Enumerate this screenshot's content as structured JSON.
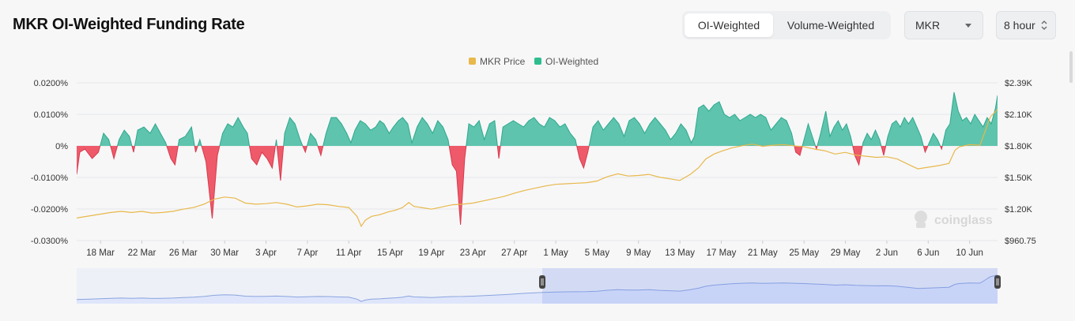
{
  "header": {
    "title": "MKR OI-Weighted Funding Rate",
    "tabs": [
      {
        "label": "OI-Weighted",
        "active": true
      },
      {
        "label": "Volume-Weighted",
        "active": false
      }
    ],
    "coin_select": "MKR",
    "interval_select": "8 hour"
  },
  "watermark": "coinglass",
  "colors": {
    "price": "#e8b84a",
    "positive": "#5ec4ad",
    "negative": "#ee5a6a",
    "navigator_line": "#8aa4de",
    "navigator_fill": "#dfe6fb"
  },
  "chart_data": {
    "type": "line",
    "legend": [
      "MKR Price",
      "OI-Weighted"
    ],
    "legend_position": "top-center",
    "x_tick_labels": [
      "18 Mar",
      "22 Mar",
      "26 Mar",
      "30 Mar",
      "3 Apr",
      "7 Apr",
      "11 Apr",
      "15 Apr",
      "19 Apr",
      "23 Apr",
      "27 Apr",
      "1 May",
      "5 May",
      "9 May",
      "13 May",
      "17 May",
      "21 May",
      "25 May",
      "29 May",
      "2 Jun",
      "6 Jun",
      "10 Jun"
    ],
    "y_left_tick_labels": [
      "0.0200%",
      "0.0100%",
      "0%",
      "-0.0100%",
      "-0.0200%",
      "-0.0300%"
    ],
    "y_right_tick_labels": [
      "$2.39K",
      "$2.10K",
      "$1.80K",
      "$1.50K",
      "$1.20K",
      "$960.75"
    ],
    "y_left_range_pct": [
      -0.03,
      0.02
    ],
    "y_right_range_usd": [
      960.75,
      2390
    ],
    "x_range_days": [
      -2.3,
      86.7
    ],
    "grid": true,
    "navigator_window_days": [
      42.7,
      86.7
    ],
    "series": [
      {
        "name": "OI-Weighted",
        "type": "area",
        "unit": "%",
        "points": [
          [
            -2.3,
            -0.009
          ],
          [
            -2.0,
            -0.002
          ],
          [
            -1.5,
            -0.001
          ],
          [
            -0.8,
            -0.004
          ],
          [
            -0.2,
            -0.002
          ],
          [
            0.3,
            0.004
          ],
          [
            0.8,
            0.002
          ],
          [
            1.3,
            -0.004
          ],
          [
            1.8,
            0.002
          ],
          [
            2.3,
            0.005
          ],
          [
            2.8,
            0.003
          ],
          [
            3.2,
            -0.002
          ],
          [
            3.6,
            0.005
          ],
          [
            4.2,
            0.006
          ],
          [
            4.8,
            0.004
          ],
          [
            5.3,
            0.007
          ],
          [
            5.8,
            0.004
          ],
          [
            6.3,
            0.001
          ],
          [
            6.8,
            -0.004
          ],
          [
            7.2,
            -0.006
          ],
          [
            7.6,
            0.002
          ],
          [
            8.2,
            0.003
          ],
          [
            8.8,
            0.006
          ],
          [
            9.2,
            -0.002
          ],
          [
            9.6,
            0.002
          ],
          [
            10.2,
            -0.005
          ],
          [
            10.8,
            -0.023
          ],
          [
            11.3,
            -0.003
          ],
          [
            11.8,
            0.004
          ],
          [
            12.3,
            0.007
          ],
          [
            12.8,
            0.006
          ],
          [
            13.3,
            0.009
          ],
          [
            13.8,
            0.006
          ],
          [
            14.2,
            0.004
          ],
          [
            14.6,
            -0.004
          ],
          [
            15.1,
            -0.006
          ],
          [
            15.6,
            -0.002
          ],
          [
            16.1,
            -0.004
          ],
          [
            16.6,
            -0.007
          ],
          [
            17.0,
            0.002
          ],
          [
            17.4,
            -0.011
          ],
          [
            17.8,
            0.004
          ],
          [
            18.3,
            0.009
          ],
          [
            18.8,
            0.007
          ],
          [
            19.3,
            0.002
          ],
          [
            19.8,
            -0.002
          ],
          [
            20.3,
            0.004
          ],
          [
            20.8,
            0.002
          ],
          [
            21.3,
            -0.003
          ],
          [
            21.8,
            0.004
          ],
          [
            22.3,
            0.009
          ],
          [
            22.8,
            0.009
          ],
          [
            23.3,
            0.007
          ],
          [
            23.8,
            0.004
          ],
          [
            24.2,
            0.001
          ],
          [
            24.6,
            0.005
          ],
          [
            25.1,
            0.008
          ],
          [
            25.6,
            0.007
          ],
          [
            26.1,
            0.005
          ],
          [
            26.6,
            0.006
          ],
          [
            27.0,
            0.008
          ],
          [
            27.4,
            0.007
          ],
          [
            27.9,
            0.004
          ],
          [
            28.3,
            0.006
          ],
          [
            28.8,
            0.008
          ],
          [
            29.2,
            0.009
          ],
          [
            29.7,
            0.007
          ],
          [
            30.1,
            0.001
          ],
          [
            30.6,
            0.006
          ],
          [
            31.1,
            0.009
          ],
          [
            31.6,
            0.007
          ],
          [
            32.1,
            0.004
          ],
          [
            32.6,
            0.008
          ],
          [
            33.1,
            0.006
          ],
          [
            33.6,
            0.002
          ],
          [
            34.0,
            -0.006
          ],
          [
            34.4,
            -0.008
          ],
          [
            34.8,
            -0.025
          ],
          [
            35.2,
            -0.004
          ],
          [
            35.6,
            0.007
          ],
          [
            36.1,
            0.006
          ],
          [
            36.6,
            0.008
          ],
          [
            37.1,
            0.002
          ],
          [
            37.6,
            0.007
          ],
          [
            38.1,
            0.008
          ],
          [
            38.5,
            -0.004
          ],
          [
            38.9,
            0.006
          ],
          [
            39.4,
            0.007
          ],
          [
            39.9,
            0.008
          ],
          [
            40.4,
            0.007
          ],
          [
            40.9,
            0.006
          ],
          [
            41.4,
            0.008
          ],
          [
            41.9,
            0.009
          ],
          [
            42.4,
            0.007
          ],
          [
            42.9,
            0.006
          ],
          [
            43.4,
            0.009
          ],
          [
            43.9,
            0.008
          ],
          [
            44.4,
            0.006
          ],
          [
            44.9,
            0.007
          ],
          [
            45.4,
            0.004
          ],
          [
            45.9,
            0.002
          ],
          [
            46.3,
            -0.004
          ],
          [
            46.7,
            -0.007
          ],
          [
            47.1,
            -0.002
          ],
          [
            47.6,
            0.006
          ],
          [
            48.1,
            0.008
          ],
          [
            48.6,
            0.005
          ],
          [
            49.1,
            0.007
          ],
          [
            49.6,
            0.009
          ],
          [
            50.1,
            0.007
          ],
          [
            50.6,
            0.003
          ],
          [
            51.1,
            0.008
          ],
          [
            51.6,
            0.009
          ],
          [
            52.1,
            0.007
          ],
          [
            52.6,
            0.004
          ],
          [
            53.1,
            0.007
          ],
          [
            53.6,
            0.009
          ],
          [
            54.1,
            0.007
          ],
          [
            54.6,
            0.005
          ],
          [
            55.1,
            0.002
          ],
          [
            55.6,
            0.004
          ],
          [
            56.1,
            0.007
          ],
          [
            56.6,
            0.005
          ],
          [
            57.1,
            0.001
          ],
          [
            57.4,
            0.003
          ],
          [
            57.8,
            0.012
          ],
          [
            58.3,
            0.013
          ],
          [
            58.8,
            0.011
          ],
          [
            59.3,
            0.013
          ],
          [
            59.8,
            0.014
          ],
          [
            60.3,
            0.01
          ],
          [
            60.8,
            0.009
          ],
          [
            61.3,
            0.01
          ],
          [
            61.8,
            0.008
          ],
          [
            62.3,
            0.009
          ],
          [
            62.8,
            0.01
          ],
          [
            63.3,
            0.009
          ],
          [
            63.8,
            0.01
          ],
          [
            64.3,
            0.009
          ],
          [
            64.8,
            0.005
          ],
          [
            65.3,
            0.007
          ],
          [
            65.8,
            0.009
          ],
          [
            66.3,
            0.008
          ],
          [
            66.8,
            0.004
          ],
          [
            67.2,
            -0.002
          ],
          [
            67.6,
            -0.003
          ],
          [
            68.0,
            0.002
          ],
          [
            68.4,
            0.007
          ],
          [
            68.8,
            0.003
          ],
          [
            69.2,
            -0.001
          ],
          [
            69.6,
            0.004
          ],
          [
            70.1,
            0.011
          ],
          [
            70.5,
            0.003
          ],
          [
            70.9,
            0.006
          ],
          [
            71.3,
            0.008
          ],
          [
            71.7,
            0.005
          ],
          [
            72.1,
            0.007
          ],
          [
            72.5,
            0.003
          ],
          [
            72.9,
            -0.003
          ],
          [
            73.3,
            -0.006
          ],
          [
            73.7,
            0.001
          ],
          [
            74.1,
            0.004
          ],
          [
            74.5,
            0.002
          ],
          [
            74.9,
            0.005
          ],
          [
            75.3,
            0.002
          ],
          [
            75.7,
            -0.003
          ],
          [
            76.1,
            0.003
          ],
          [
            76.5,
            0.007
          ],
          [
            76.9,
            0.008
          ],
          [
            77.3,
            0.006
          ],
          [
            77.7,
            0.009
          ],
          [
            78.1,
            0.007
          ],
          [
            78.5,
            0.009
          ],
          [
            78.9,
            0.006
          ],
          [
            79.3,
            0.003
          ],
          [
            79.7,
            -0.002
          ],
          [
            80.1,
            0.001
          ],
          [
            80.5,
            0.004
          ],
          [
            80.9,
            0.002
          ],
          [
            81.3,
            -0.001
          ],
          [
            81.7,
            0.005
          ],
          [
            82.1,
            0.007
          ],
          [
            82.5,
            0.017
          ],
          [
            82.9,
            0.011
          ],
          [
            83.3,
            0.008
          ],
          [
            83.7,
            0.009
          ],
          [
            84.1,
            0.007
          ],
          [
            84.5,
            0.01
          ],
          [
            84.9,
            0.008
          ],
          [
            85.3,
            0.006
          ],
          [
            85.7,
            0.009
          ],
          [
            86.1,
            0.007
          ],
          [
            86.5,
            0.012
          ],
          [
            86.7,
            0.016
          ]
        ]
      },
      {
        "name": "MKR Price",
        "type": "line",
        "unit": "USD",
        "points": [
          [
            -2.3,
            1165
          ],
          [
            -1.0,
            1185
          ],
          [
            0.0,
            1200
          ],
          [
            1.0,
            1215
          ],
          [
            2.0,
            1225
          ],
          [
            3.0,
            1215
          ],
          [
            4.0,
            1225
          ],
          [
            5.0,
            1210
          ],
          [
            6.0,
            1215
          ],
          [
            7.0,
            1225
          ],
          [
            8.0,
            1245
          ],
          [
            9.0,
            1260
          ],
          [
            10.0,
            1290
          ],
          [
            11.0,
            1335
          ],
          [
            12.0,
            1355
          ],
          [
            13.0,
            1345
          ],
          [
            14.0,
            1300
          ],
          [
            15.0,
            1290
          ],
          [
            16.0,
            1295
          ],
          [
            17.0,
            1305
          ],
          [
            18.0,
            1290
          ],
          [
            19.0,
            1265
          ],
          [
            20.0,
            1275
          ],
          [
            21.0,
            1290
          ],
          [
            22.0,
            1285
          ],
          [
            23.0,
            1270
          ],
          [
            24.0,
            1260
          ],
          [
            24.8,
            1180
          ],
          [
            25.2,
            1090
          ],
          [
            25.6,
            1145
          ],
          [
            26.2,
            1180
          ],
          [
            27.0,
            1195
          ],
          [
            27.8,
            1220
          ],
          [
            28.5,
            1235
          ],
          [
            29.2,
            1260
          ],
          [
            29.8,
            1305
          ],
          [
            30.3,
            1270
          ],
          [
            31.0,
            1260
          ],
          [
            32.0,
            1245
          ],
          [
            33.0,
            1265
          ],
          [
            34.0,
            1285
          ],
          [
            35.0,
            1290
          ],
          [
            36.0,
            1300
          ],
          [
            37.0,
            1320
          ],
          [
            38.0,
            1340
          ],
          [
            39.0,
            1360
          ],
          [
            40.0,
            1390
          ],
          [
            41.0,
            1415
          ],
          [
            42.0,
            1435
          ],
          [
            43.0,
            1455
          ],
          [
            44.0,
            1470
          ],
          [
            45.0,
            1475
          ],
          [
            46.0,
            1480
          ],
          [
            47.0,
            1485
          ],
          [
            48.0,
            1500
          ],
          [
            49.0,
            1540
          ],
          [
            50.0,
            1565
          ],
          [
            51.0,
            1545
          ],
          [
            52.0,
            1550
          ],
          [
            53.0,
            1560
          ],
          [
            54.0,
            1535
          ],
          [
            55.0,
            1520
          ],
          [
            56.0,
            1505
          ],
          [
            57.0,
            1560
          ],
          [
            57.8,
            1620
          ],
          [
            58.5,
            1700
          ],
          [
            59.3,
            1745
          ],
          [
            60.0,
            1770
          ],
          [
            61.0,
            1800
          ],
          [
            62.0,
            1820
          ],
          [
            63.0,
            1835
          ],
          [
            64.0,
            1815
          ],
          [
            65.0,
            1825
          ],
          [
            66.0,
            1830
          ],
          [
            67.0,
            1820
          ],
          [
            68.0,
            1810
          ],
          [
            69.0,
            1790
          ],
          [
            70.0,
            1775
          ],
          [
            71.0,
            1745
          ],
          [
            72.0,
            1760
          ],
          [
            73.0,
            1735
          ],
          [
            74.0,
            1725
          ],
          [
            75.0,
            1715
          ],
          [
            76.0,
            1720
          ],
          [
            77.0,
            1700
          ],
          [
            78.0,
            1655
          ],
          [
            79.0,
            1610
          ],
          [
            80.0,
            1625
          ],
          [
            81.0,
            1640
          ],
          [
            82.0,
            1660
          ],
          [
            82.6,
            1780
          ],
          [
            83.0,
            1810
          ],
          [
            84.0,
            1830
          ],
          [
            85.0,
            1825
          ],
          [
            85.5,
            1950
          ],
          [
            86.0,
            2080
          ],
          [
            86.7,
            2150
          ]
        ]
      }
    ]
  }
}
